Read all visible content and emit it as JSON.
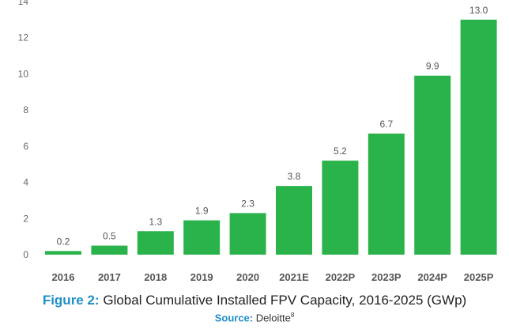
{
  "chart_data": {
    "type": "bar",
    "categories": [
      "2016",
      "2017",
      "2018",
      "2019",
      "2020",
      "2021E",
      "2022P",
      "2023P",
      "2024P",
      "2025P"
    ],
    "values": [
      0.2,
      0.5,
      1.3,
      1.9,
      2.3,
      3.8,
      5.2,
      6.7,
      9.9,
      13.0
    ],
    "data_labels": [
      "0.2",
      "0.5",
      "1.3",
      "1.9",
      "2.3",
      "3.8",
      "5.2",
      "6.7",
      "9.9",
      "13.0"
    ],
    "yticks": [
      0,
      2,
      4,
      6,
      8,
      10,
      12,
      14
    ],
    "ylim": [
      0,
      14
    ],
    "grid": false,
    "bar_color": "#2ab34b"
  },
  "caption": {
    "figure_label": "Figure 2:",
    "title": "Global Cumulative Installed FPV Capacity, 2016-2025 (GWp)"
  },
  "source": {
    "label": "Source:",
    "name": "Deloitte",
    "footnote": "8"
  }
}
